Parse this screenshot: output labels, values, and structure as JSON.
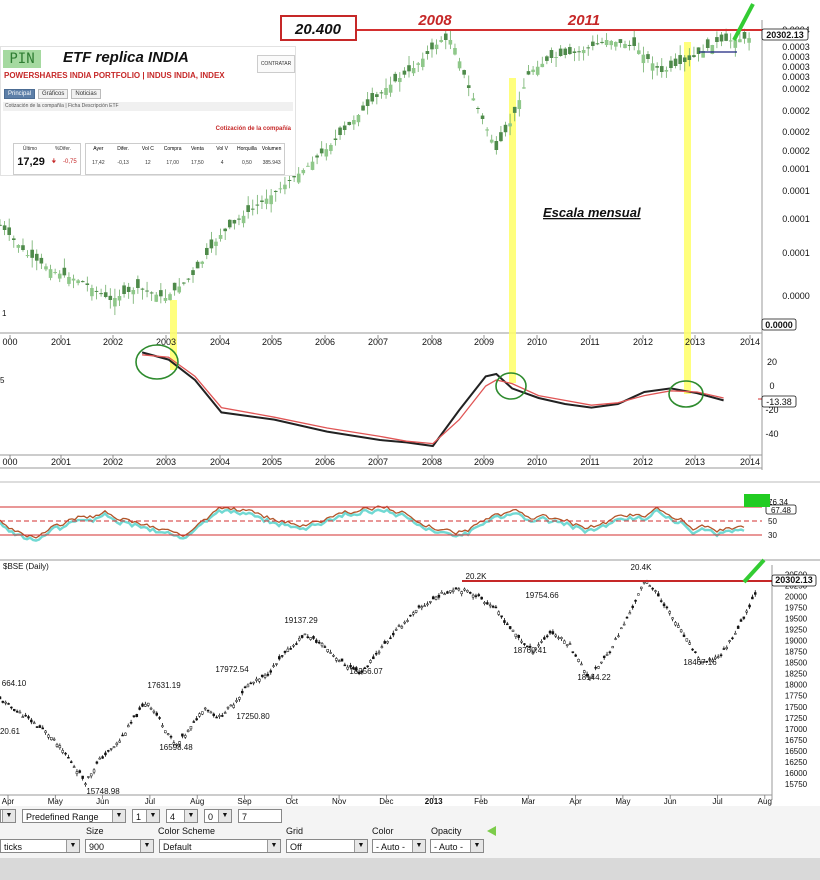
{
  "overlay": {
    "level_box": "20.400",
    "year_labels": [
      "2008",
      "2011"
    ],
    "scale_note": "Escala mensual",
    "price_readout": "20302.13"
  },
  "etf_panel": {
    "logo_text": "PIN",
    "title": "ETF replica INDIA",
    "corp_logo_text": "CONTRATAR",
    "name": "POWERSHARES INDIA PORTFOLIO | INDUS INDIA, INDEX",
    "tabs": [
      "Principal",
      "Gráficos",
      "Noticias"
    ],
    "subbar": "Cotización de la compañía | Ficha Descripción ETF",
    "cot_title": "Cotización de la compañía",
    "quote": {
      "last_label": "Último",
      "last": "17,29",
      "chg_label": "%Difer.",
      "chg": "-0,75",
      "cols": [
        {
          "h": "Ayer",
          "v": "17,42"
        },
        {
          "h": "Difer.",
          "v": "-0,13"
        },
        {
          "h": "Vol C",
          "v": "12"
        },
        {
          "h": "Compra",
          "v": "17,00"
        },
        {
          "h": "Venta",
          "v": "17,50"
        },
        {
          "h": "Vol V",
          "v": "4"
        },
        {
          "h": "Horquilla",
          "v": "0,50"
        },
        {
          "h": "Volumen",
          "v": "385.943"
        }
      ]
    }
  },
  "chart_data": [
    {
      "type": "line",
      "name": "monthly-price",
      "x": [
        2000,
        2000.5,
        2001,
        2001.5,
        2002,
        2002.5,
        2003,
        2003.5,
        2004,
        2004.5,
        2005,
        2005.5,
        2006,
        2006.5,
        2007,
        2007.5,
        2008,
        2008.2,
        2008.5,
        2009,
        2009.3,
        2009.6,
        2010,
        2010.5,
        2011,
        2011.5,
        2012,
        2012.5,
        2013,
        2013.3,
        2013.6
      ],
      "y": [
        225,
        255,
        272,
        282,
        300,
        288,
        298,
        275,
        235,
        212,
        192,
        170,
        145,
        115,
        88,
        68,
        40,
        40,
        88,
        150,
        118,
        72,
        58,
        52,
        40,
        46,
        72,
        60,
        42,
        40,
        38
      ],
      "xticks": [
        "000",
        "2001",
        "2002",
        "2003",
        "2004",
        "2005",
        "2006",
        "2007",
        "2008",
        "2009",
        "2010",
        "2011",
        "2012",
        "2013",
        "2014"
      ],
      "right_labels": [
        "0.0004",
        "0.0003",
        "0.0003",
        "0.0003",
        "0.0003",
        "0.0002",
        "0.0002",
        "0.0002",
        "0.0002",
        "0.0001",
        "0.0001",
        "0.0001",
        "0.0001",
        "0.0000"
      ],
      "last_value_label": "0.0000",
      "left_tick": "1"
    },
    {
      "type": "line",
      "name": "oscillator",
      "x": [
        2002.5,
        2003,
        2003.5,
        2004,
        2005,
        2006,
        2007,
        2007.5,
        2008,
        2008.5,
        2009,
        2009.2,
        2009.5,
        2010,
        2010.5,
        2011,
        2011.5,
        2012,
        2012.5,
        2013,
        2013.5
      ],
      "series": [
        {
          "values": [
            28,
            22,
            5,
            -22,
            -28,
            -38,
            -45,
            -47,
            -50,
            -20,
            8,
            10,
            -2,
            -10,
            -15,
            -18,
            -15,
            -5,
            -2,
            -6,
            -12
          ]
        },
        {
          "values": [
            26,
            24,
            8,
            -18,
            -26,
            -35,
            -42,
            -46,
            -48,
            -28,
            0,
            5,
            2,
            -8,
            -12,
            -16,
            -14,
            -8,
            -4,
            -5,
            -10
          ]
        }
      ],
      "yticks": [
        "20",
        "0",
        "-20",
        "-40"
      ],
      "last_value_label": "-13.38",
      "xticks": [
        "000",
        "2001",
        "2002",
        "2003",
        "2004",
        "2005",
        "2006",
        "2007",
        "2008",
        "2009",
        "2010",
        "2011",
        "2012",
        "2013",
        "2014"
      ],
      "left_tick": "5"
    },
    {
      "type": "line",
      "name": "rsi-band",
      "yticks": [
        "70",
        "50",
        "30"
      ],
      "last_value_label": "67.48",
      "top_label": "76.34"
    },
    {
      "type": "line",
      "name": "bse-daily",
      "title": "$BSE (Daily)",
      "x": [
        0,
        0.5,
        1,
        1.4,
        1.8,
        2.1,
        2.5,
        2.8,
        3.1,
        3.4,
        3.7,
        4.0,
        4.3,
        4.6,
        4.9,
        5.2,
        5.6,
        6.0,
        6.4,
        6.8,
        7.2,
        7.6,
        8.0,
        8.4,
        8.8,
        9.2,
        9.6,
        10.0,
        10.4,
        10.8,
        11.2,
        11.6,
        12.0,
        12.4,
        12.8,
        13.2,
        13.6,
        14.0,
        14.4,
        14.8,
        15.2,
        15.6,
        16.0
      ],
      "y": [
        17664,
        17300,
        16900,
        16400,
        15800,
        16300,
        16700,
        17200,
        17631,
        17150,
        16600,
        17000,
        17500,
        17250,
        17550,
        17972,
        18200,
        18700,
        19137,
        18900,
        18500,
        18256,
        18800,
        19300,
        19700,
        20000,
        20200,
        20050,
        19754,
        19200,
        18760,
        19200,
        18900,
        18144,
        18700,
        19500,
        20400,
        19800,
        19100,
        18467,
        18700,
        19400,
        20302
      ],
      "xticks": [
        "Apr",
        "May",
        "Jun",
        "Jul",
        "Aug",
        "Sep",
        "Oct",
        "Nov",
        "Dec",
        "2013",
        "Feb",
        "Mar",
        "Apr",
        "May",
        "Jun",
        "Jul",
        "Aug"
      ],
      "ylim": [
        15500,
        20600
      ],
      "yticks": [
        "20500",
        "20250",
        "20000",
        "19750",
        "19500",
        "19250",
        "19000",
        "18750",
        "18500",
        "18250",
        "18000",
        "17750",
        "17500",
        "17250",
        "17000",
        "16750",
        "16500",
        "16250",
        "16000",
        "15750"
      ],
      "resistance": 20302,
      "last_value_label": "20302.13",
      "annotations": [
        "664.10",
        "20.61",
        "15748.98",
        "16598.48",
        "17631.19",
        "17250.80",
        "17972.54",
        "19137.29",
        "18256.07",
        "20.2K",
        "19754.66",
        "18760.41",
        "18144.22",
        "20.4K",
        "18467.16"
      ]
    }
  ],
  "controls": {
    "labels": {
      "size": "Size",
      "scheme": "Color Scheme",
      "grid": "Grid",
      "color": "Color",
      "opacity": "Opacity"
    },
    "row1": {
      "range": "Predefined Range",
      "v1": "1",
      "v2": "4",
      "v3": "0",
      "v4": "7"
    },
    "row2": {
      "type": "ticks",
      "size": "900",
      "scheme": "Default",
      "grid": "Off",
      "color": "- Auto -",
      "opacity": "- Auto -"
    }
  },
  "colors": {
    "candle_up": "#8fc88a",
    "candle_down": "#4e8a4a",
    "red": "#d32f2f",
    "yellow": "#ffff66",
    "green_mark": "#33cc33",
    "circle": "#2e8b2e"
  }
}
